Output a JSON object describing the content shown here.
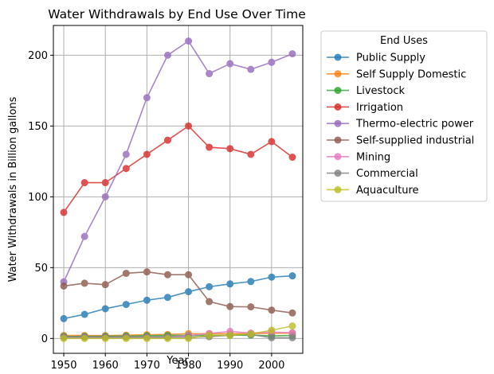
{
  "chart_data": {
    "type": "line",
    "title": "Water Withdrawals by End Use Over Time",
    "xlabel": "Year",
    "ylabel": "Water Withdrawals in Billion gallons",
    "x": [
      1950,
      1955,
      1960,
      1965,
      1970,
      1975,
      1980,
      1985,
      1990,
      1995,
      2000,
      2005
    ],
    "xlim": [
      1947.5,
      2007.5
    ],
    "ylim": [
      -10.5,
      221
    ],
    "xticks": [
      1950,
      1960,
      1970,
      1980,
      1990,
      2000
    ],
    "yticks": [
      0,
      50,
      100,
      150,
      200
    ],
    "grid": true,
    "legend": {
      "title": "End Uses",
      "placement": "outside-right"
    },
    "series": [
      {
        "name": "Public Supply",
        "color": "#1f77b4",
        "values": [
          14,
          17,
          21,
          24,
          27,
          29,
          33,
          36.5,
          38.5,
          40.2,
          43.3,
          44.2
        ]
      },
      {
        "name": "Self Supply Domestic",
        "color": "#ff7f0e",
        "values": [
          2.1,
          2.1,
          2,
          2.3,
          2.6,
          2.8,
          3.4,
          3.3,
          3.4,
          3.4,
          3.6,
          3.8
        ]
      },
      {
        "name": "Livestock",
        "color": "#2ca02c",
        "values": [
          1.5,
          1.5,
          1.6,
          1.7,
          1.9,
          2.1,
          2.2,
          2.2,
          2.3,
          2.4,
          1.8,
          2.1
        ]
      },
      {
        "name": "Irrigation",
        "color": "#d62728",
        "values": [
          89,
          110,
          110,
          120,
          130,
          140,
          150,
          135,
          134,
          130,
          139,
          128
        ]
      },
      {
        "name": "Thermo-electric power",
        "color": "#9467bd",
        "values": [
          40,
          72,
          100,
          130,
          170,
          200,
          210,
          187,
          194,
          190,
          195,
          201
        ]
      },
      {
        "name": "Self-supplied industrial",
        "color": "#8c564b",
        "values": [
          37,
          39,
          38,
          46,
          47,
          45,
          45,
          26,
          22.5,
          22.3,
          20,
          18
        ]
      },
      {
        "name": "Mining",
        "color": "#e377c2",
        "values": [
          1,
          1,
          1,
          1,
          1,
          1,
          2,
          3.5,
          5,
          3.8,
          4.5,
          4
        ]
      },
      {
        "name": "Commercial",
        "color": "#7f7f7f",
        "values": [
          1,
          1,
          1,
          1,
          1,
          1,
          1,
          1.2,
          2.3,
          2.8,
          0.5,
          0.5
        ]
      },
      {
        "name": "Aquaculture",
        "color": "#bcbd22",
        "values": [
          0,
          0,
          0,
          0,
          0,
          0,
          0,
          2.2,
          2.2,
          3.2,
          5.8,
          8.8
        ]
      }
    ]
  }
}
